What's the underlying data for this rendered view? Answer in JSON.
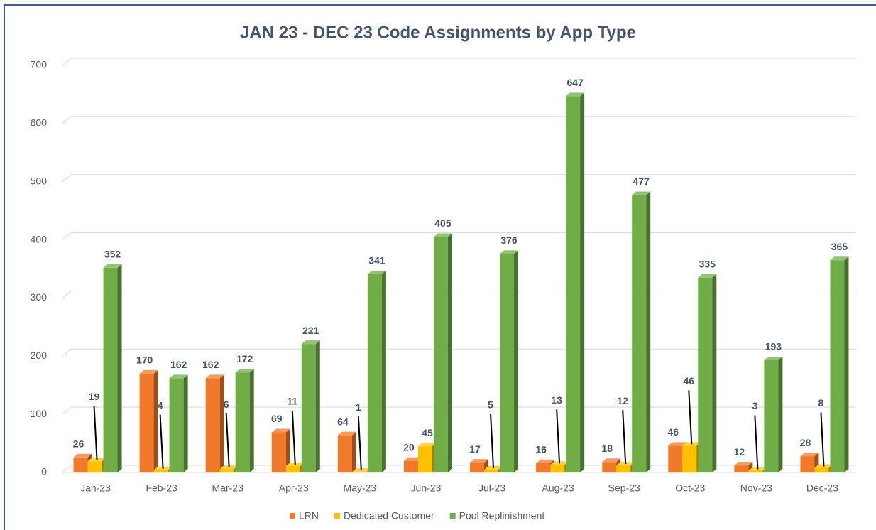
{
  "chart_data": {
    "type": "bar3d",
    "title": "JAN 23 - DEC 23 Code Assignments by App Type",
    "categories": [
      "Jan-23",
      "Feb-23",
      "Mar-23",
      "Apr-23",
      "May-23",
      "Jun-23",
      "Jul-23",
      "Aug-23",
      "Sep-23",
      "Oct-23",
      "Nov-23",
      "Dec-23"
    ],
    "series": [
      {
        "name": "LRN",
        "color": "#f07a2a",
        "values": [
          26,
          170,
          162,
          69,
          64,
          20,
          17,
          16,
          18,
          46,
          12,
          28
        ]
      },
      {
        "name": "Dedicated Customer",
        "color": "#ffc000",
        "values": [
          19,
          4,
          6,
          11,
          1,
          45,
          5,
          13,
          12,
          46,
          3,
          8
        ]
      },
      {
        "name": "Pool Replinishment",
        "color": "#70ad47",
        "values": [
          352,
          162,
          172,
          221,
          341,
          405,
          376,
          647,
          477,
          335,
          193,
          365
        ]
      }
    ],
    "ylim": [
      0,
      700
    ],
    "yticks": [
      0,
      100,
      200,
      300,
      400,
      500,
      600,
      700
    ],
    "grid": true,
    "legend": "bottom"
  }
}
